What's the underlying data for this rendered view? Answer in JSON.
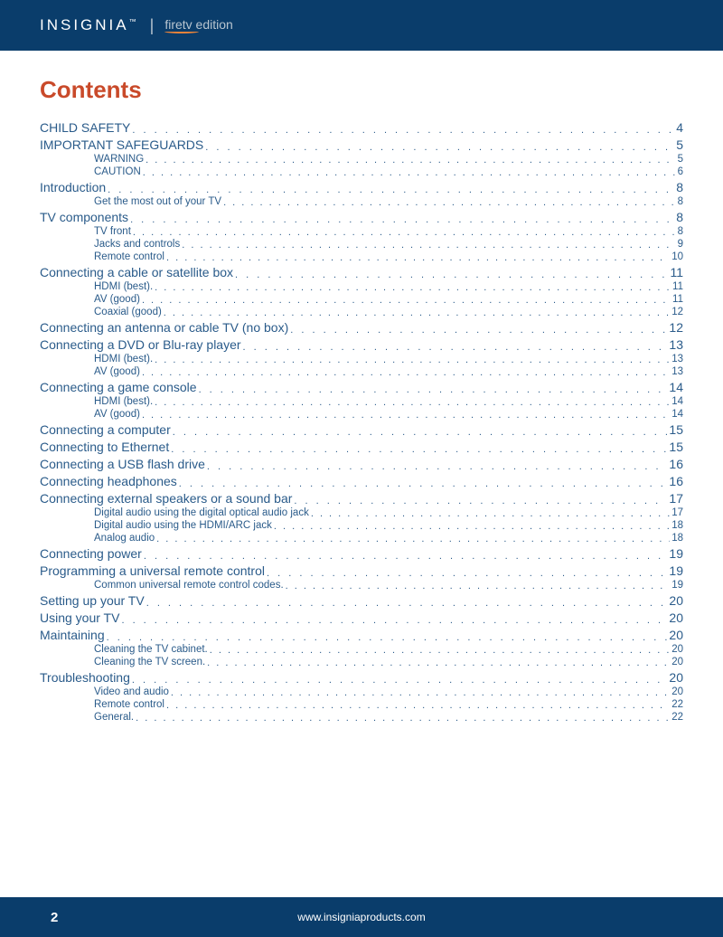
{
  "header": {
    "brand": "INSIGNIA",
    "edition_prefix": "fire",
    "edition_suffix": "tv edition"
  },
  "title": "Contents",
  "toc": [
    {
      "level": 1,
      "label": "CHILD SAFETY",
      "page": "4"
    },
    {
      "level": 1,
      "label": "IMPORTANT SAFEGUARDS",
      "page": "5"
    },
    {
      "level": 2,
      "label": "WARNING",
      "page": "5"
    },
    {
      "level": 2,
      "label": "CAUTION",
      "page": "6"
    },
    {
      "level": 1,
      "label": "Introduction",
      "page": "8"
    },
    {
      "level": 2,
      "label": "Get the most out of your TV",
      "page": "8"
    },
    {
      "level": 1,
      "label": "TV components",
      "page": "8"
    },
    {
      "level": 2,
      "label": "TV front",
      "page": "8"
    },
    {
      "level": 2,
      "label": "Jacks and controls",
      "page": "9"
    },
    {
      "level": 2,
      "label": "Remote control",
      "page": "10"
    },
    {
      "level": 1,
      "label": "Connecting a cable or satellite box",
      "page": "11"
    },
    {
      "level": 2,
      "label": "HDMI (best).",
      "page": "11"
    },
    {
      "level": 2,
      "label": "AV (good)",
      "page": "11"
    },
    {
      "level": 2,
      "label": "Coaxial (good)",
      "page": "12"
    },
    {
      "level": 1,
      "label": "Connecting an antenna or cable TV (no box)",
      "page": "12"
    },
    {
      "level": 1,
      "label": "Connecting a DVD or Blu-ray player",
      "page": "13"
    },
    {
      "level": 2,
      "label": "HDMI (best).",
      "page": "13"
    },
    {
      "level": 2,
      "label": "AV (good)",
      "page": "13"
    },
    {
      "level": 1,
      "label": "Connecting a game console",
      "page": "14"
    },
    {
      "level": 2,
      "label": "HDMI (best).",
      "page": "14"
    },
    {
      "level": 2,
      "label": "AV (good)",
      "page": "14"
    },
    {
      "level": 1,
      "label": "Connecting a computer",
      "page": "15"
    },
    {
      "level": 1,
      "label": "Connecting to Ethernet",
      "page": "15"
    },
    {
      "level": 1,
      "label": "Connecting a USB flash drive",
      "page": "16"
    },
    {
      "level": 1,
      "label": "Connecting headphones",
      "page": "16"
    },
    {
      "level": 1,
      "label": "Connecting external speakers or a sound bar",
      "page": "17"
    },
    {
      "level": 2,
      "label": "Digital audio using the digital optical audio jack",
      "page": "17"
    },
    {
      "level": 2,
      "label": "Digital audio using the HDMI/ARC jack",
      "page": "18"
    },
    {
      "level": 2,
      "label": "Analog audio",
      "page": "18"
    },
    {
      "level": 1,
      "label": "Connecting power",
      "page": "19"
    },
    {
      "level": 1,
      "label": "Programming a universal remote control",
      "page": "19"
    },
    {
      "level": 2,
      "label": "Common universal remote control codes.",
      "page": "19"
    },
    {
      "level": 1,
      "label": "Setting up your TV",
      "page": "20"
    },
    {
      "level": 1,
      "label": "Using your TV",
      "page": "20"
    },
    {
      "level": 1,
      "label": "Maintaining",
      "page": "20"
    },
    {
      "level": 2,
      "label": "Cleaning the TV cabinet.",
      "page": "20"
    },
    {
      "level": 2,
      "label": "Cleaning the TV screen.",
      "page": "20"
    },
    {
      "level": 1,
      "label": "Troubleshooting",
      "page": "20"
    },
    {
      "level": 2,
      "label": "Video and audio",
      "page": "20"
    },
    {
      "level": 2,
      "label": "Remote control",
      "page": "22"
    },
    {
      "level": 2,
      "label": "General.",
      "page": "22"
    }
  ],
  "footer": {
    "page_number": "2",
    "url": "www.insigniaproducts.com"
  },
  "colors": {
    "header_bg": "#0a3d6b",
    "title": "#c94a2a",
    "toc_text": "#2a5b8a",
    "accent": "#e8833a"
  }
}
